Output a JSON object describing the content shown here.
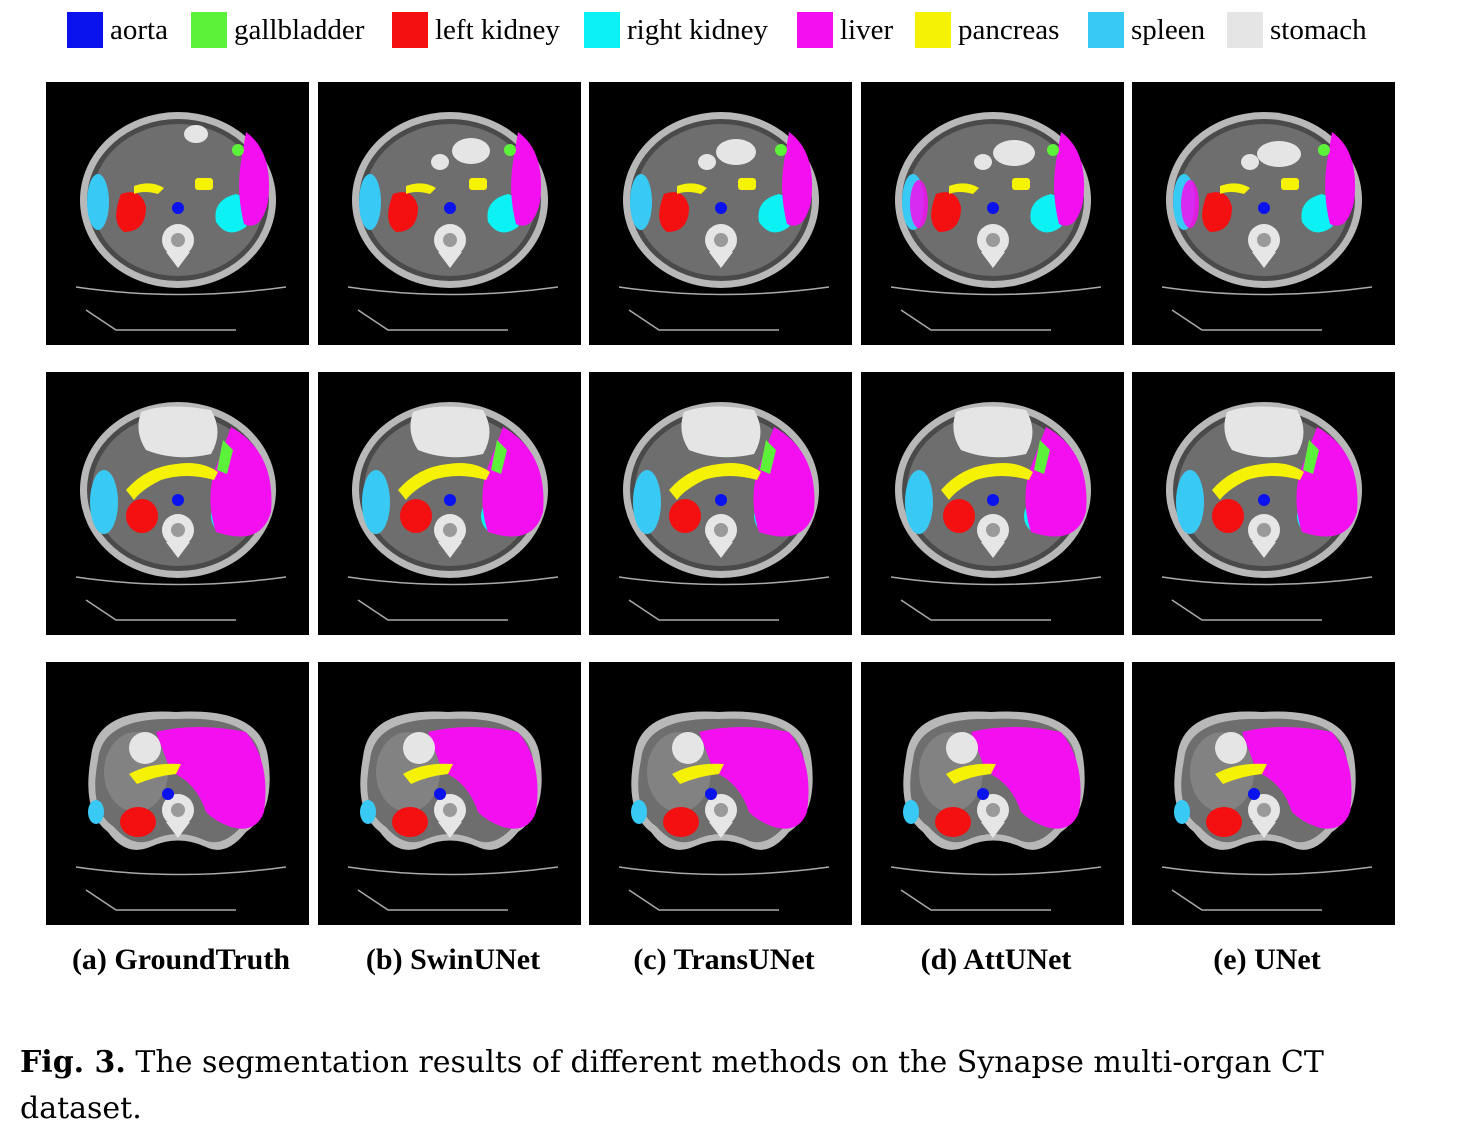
{
  "legend": [
    {
      "label": "aorta",
      "color": "#0a12ee"
    },
    {
      "label": "gallbladder",
      "color": "#5cf23a"
    },
    {
      "label": "left kidney",
      "color": "#f40f10"
    },
    {
      "label": "right kidney",
      "color": "#0cf1f3"
    },
    {
      "label": "liver",
      "color": "#f30ff0"
    },
    {
      "label": "pancreas",
      "color": "#f5f205"
    },
    {
      "label": "spleen",
      "color": "#39c9f5"
    },
    {
      "label": "stomach",
      "color": "#e5e5e5"
    }
  ],
  "columns": [
    {
      "label": "(a) GroundTruth"
    },
    {
      "label": "(b) SwinUNet"
    },
    {
      "label": "(c) TransUNet"
    },
    {
      "label": "(d) AttUNet"
    },
    {
      "label": "(e) UNet"
    }
  ],
  "caption": {
    "number": "Fig. 3.",
    "text": " The segmentation results of different methods on the Synapse multi-organ CT dataset."
  }
}
